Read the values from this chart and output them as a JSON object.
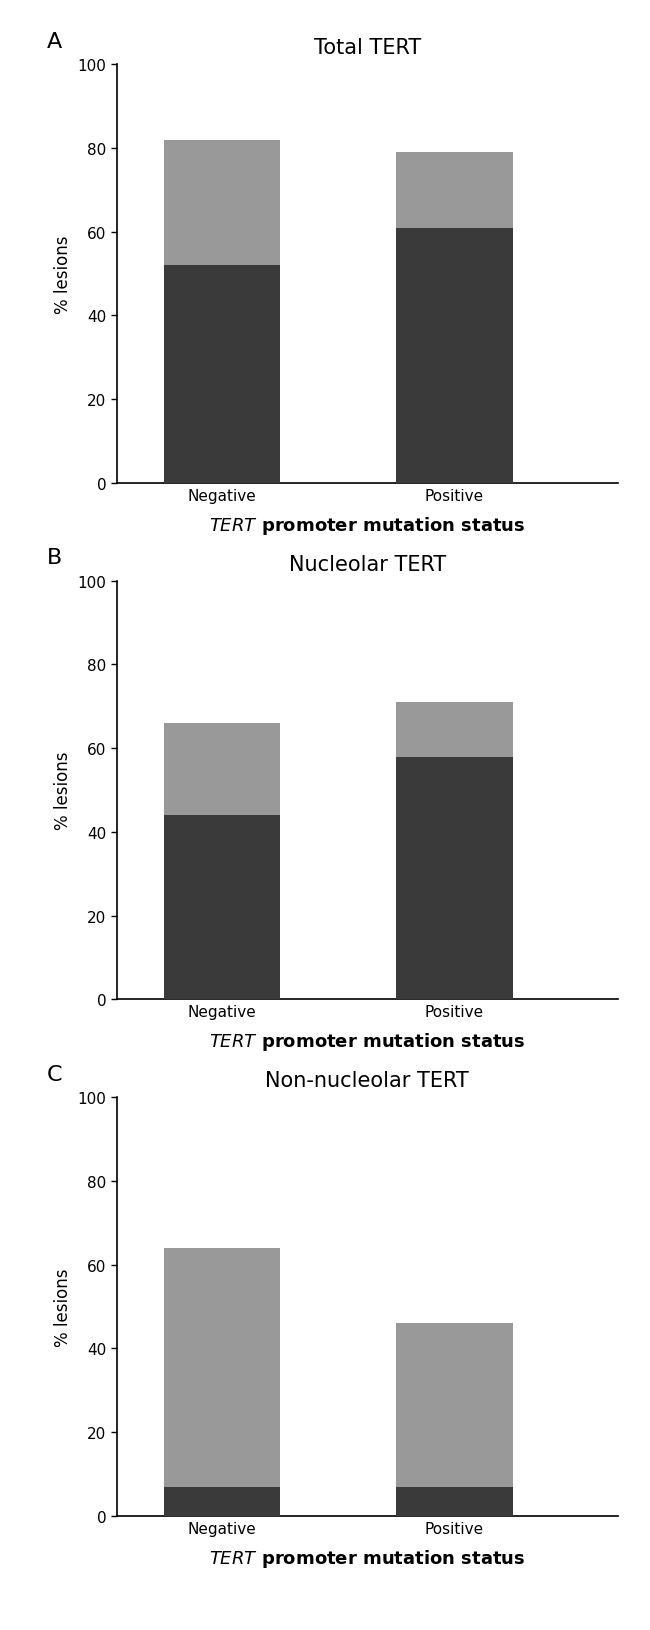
{
  "panels": [
    {
      "label": "A",
      "title": "Total TERT",
      "categories": [
        "Negative",
        "Positive"
      ],
      "dark_values": [
        52,
        61
      ],
      "light_values": [
        30,
        18
      ],
      "ylim": [
        0,
        100
      ],
      "yticks": [
        0,
        20,
        40,
        60,
        80,
        100
      ]
    },
    {
      "label": "B",
      "title": "Nucleolar TERT",
      "categories": [
        "Negative",
        "Positive"
      ],
      "dark_values": [
        44,
        58
      ],
      "light_values": [
        22,
        13
      ],
      "ylim": [
        0,
        100
      ],
      "yticks": [
        0,
        20,
        40,
        60,
        80,
        100
      ]
    },
    {
      "label": "C",
      "title": "Non-nucleolar TERT",
      "categories": [
        "Negative",
        "Positive"
      ],
      "dark_values": [
        7,
        7
      ],
      "light_values": [
        57,
        39
      ],
      "ylim": [
        0,
        100
      ],
      "yticks": [
        0,
        20,
        40,
        60,
        80,
        100
      ]
    }
  ],
  "dark_color": "#3a3a3a",
  "light_color": "#999999",
  "bar_width": 0.5,
  "ylabel": "% lesions",
  "background_color": "#ffffff",
  "title_fontsize": 15,
  "axis_fontsize": 12,
  "tick_fontsize": 11,
  "xlabel_fontsize": 13,
  "panel_label_fontsize": 16,
  "bar_positions": [
    1,
    2
  ]
}
